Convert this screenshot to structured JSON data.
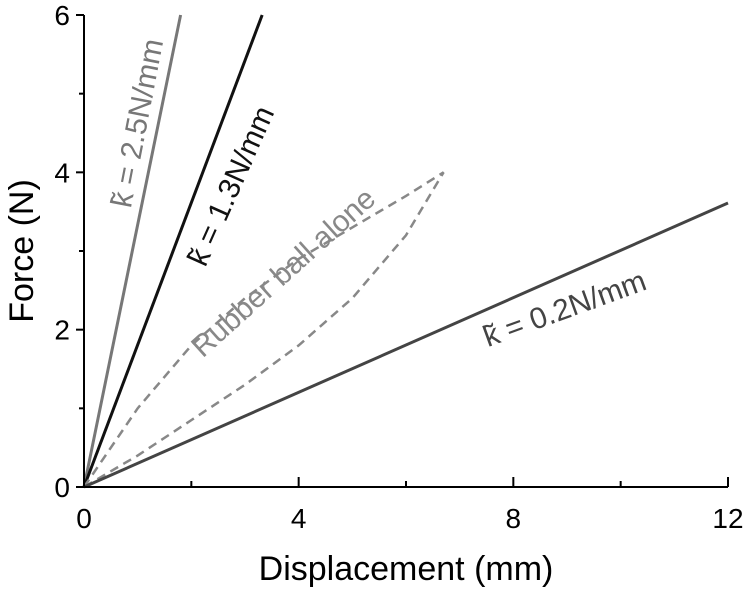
{
  "chart_data": {
    "type": "line",
    "title": "",
    "xlabel": "Displacement (mm)",
    "ylabel": "Force (N)",
    "xlim": [
      0,
      12
    ],
    "ylim": [
      0,
      6
    ],
    "xticks": [
      "0",
      "4",
      "8",
      "12"
    ],
    "yticks": [
      "0",
      "2",
      "4",
      "6"
    ],
    "grid": false,
    "series": [
      {
        "name": "k̃ = 2.5N/mm",
        "color": "#777777",
        "dashed": false,
        "x": [
          0,
          1.8
        ],
        "y": [
          0,
          6
        ]
      },
      {
        "name": "k̃ = 1.3N/mm",
        "color": "#111111",
        "dashed": false,
        "x": [
          0,
          3.32
        ],
        "y": [
          0,
          6
        ]
      },
      {
        "name": "Rubber ball alone",
        "color": "#888888",
        "dashed": true,
        "x": [
          0,
          1,
          2,
          3,
          4,
          5,
          6,
          6.7,
          6,
          5,
          4,
          3,
          2,
          1,
          0
        ],
        "y": [
          0,
          1.0,
          1.8,
          2.4,
          2.9,
          3.3,
          3.7,
          4.0,
          3.2,
          2.4,
          1.8,
          1.3,
          0.85,
          0.4,
          0
        ]
      },
      {
        "name": "k̃ = 0.2N/mm",
        "color": "#444444",
        "dashed": false,
        "x": [
          0,
          12
        ],
        "y": [
          0,
          3.61
        ]
      }
    ]
  }
}
